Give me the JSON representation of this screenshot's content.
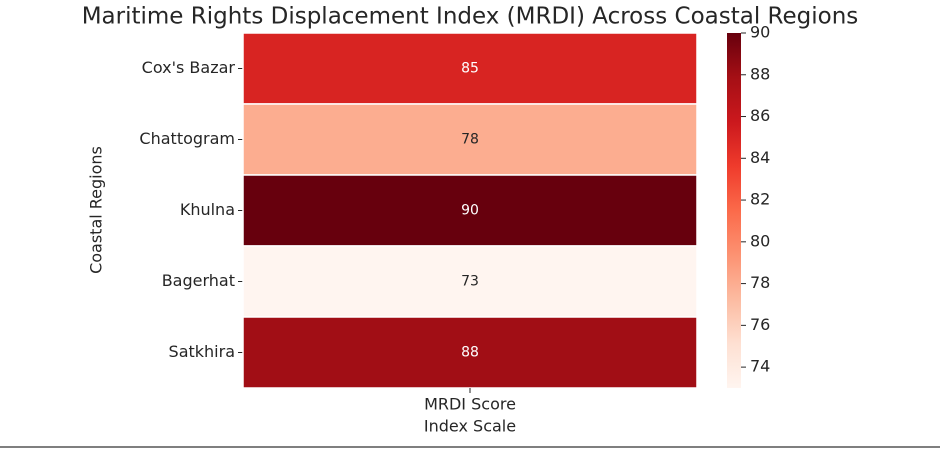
{
  "chart_data": {
    "type": "heatmap",
    "title": "Maritime Rights Displacement Index (MRDI) Across Coastal Regions",
    "rows": [
      "Cox's Bazar",
      "Chattogram",
      "Khulna",
      "Bagerhat",
      "Satkhira"
    ],
    "columns": [
      "MRDI Score"
    ],
    "values": [
      85,
      78,
      90,
      73,
      88
    ],
    "xlabel": "Index Scale",
    "ylabel": "Coastal Regions",
    "colormap": "Reds",
    "clim": [
      73,
      90
    ],
    "cticks": [
      74,
      76,
      78,
      80,
      82,
      84,
      86,
      88,
      90
    ]
  }
}
